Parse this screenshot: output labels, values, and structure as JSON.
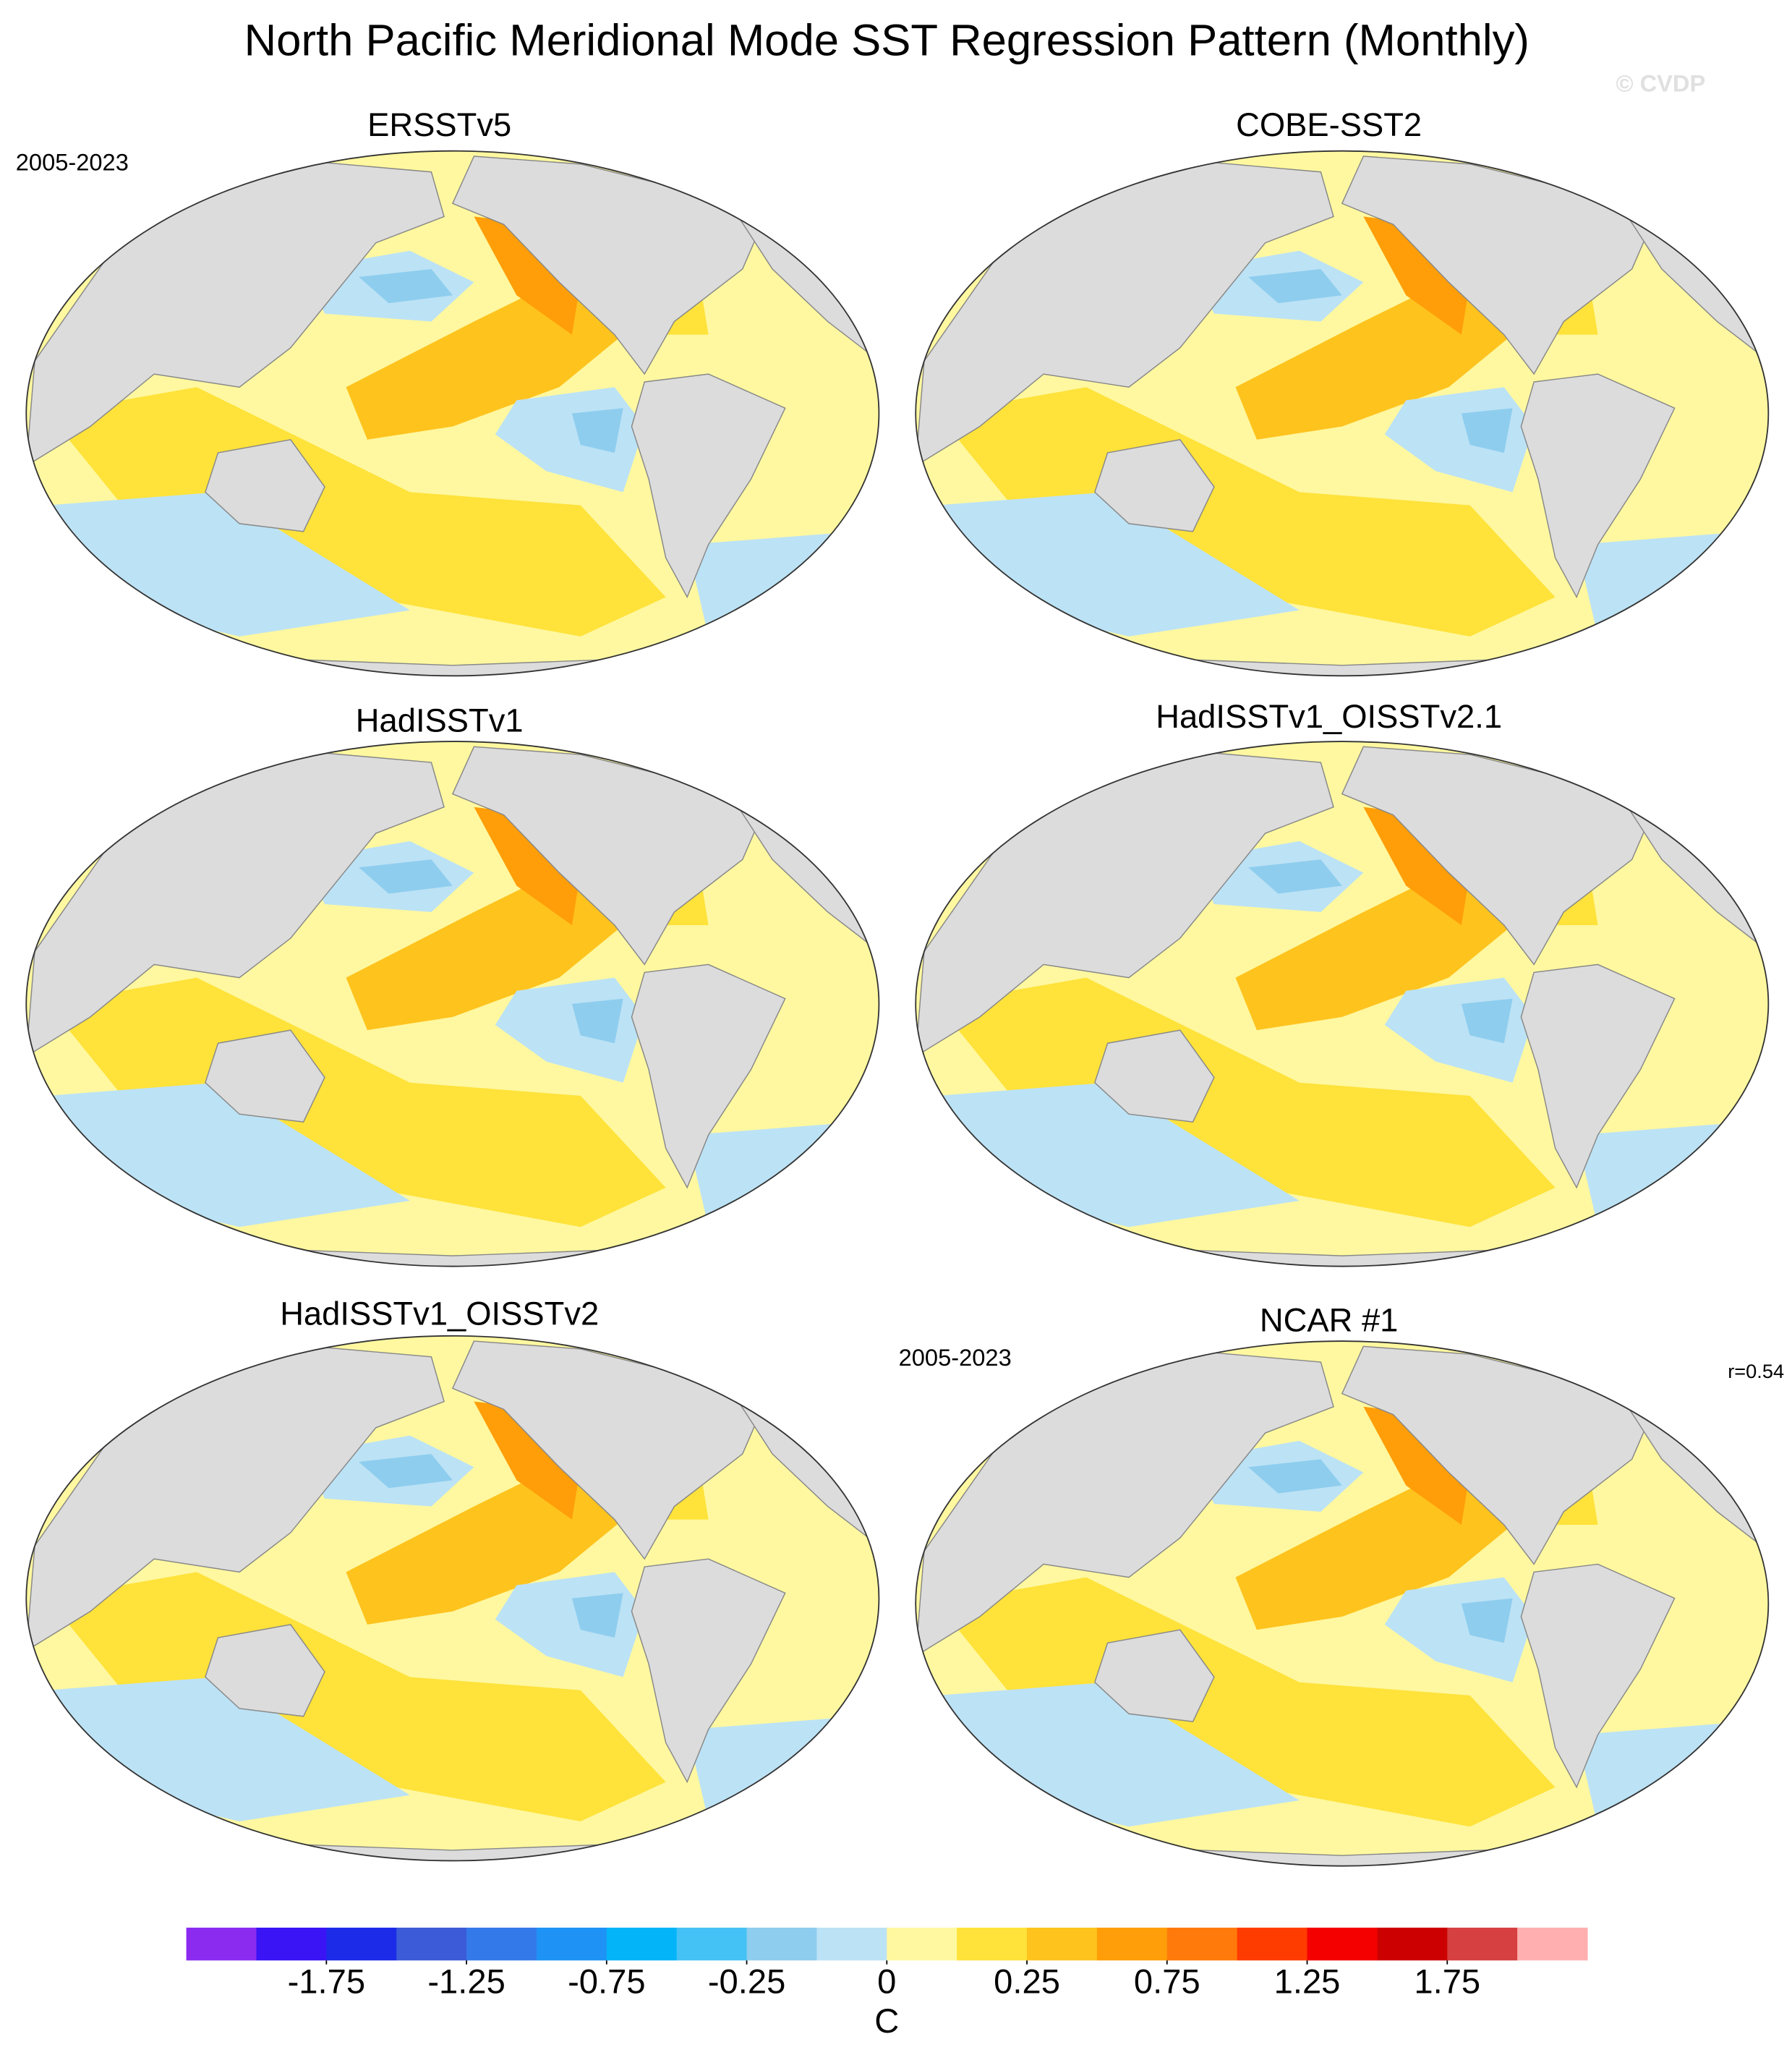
{
  "title": "North Pacific Meridional Mode SST Regression Pattern (Monthly)",
  "watermark": "© CVDP",
  "panels": [
    {
      "title": "ERSSTv5",
      "period": "2005-2023"
    },
    {
      "title": "COBE-SST2"
    },
    {
      "title": "HadISSTv1"
    },
    {
      "title": "HadISSTv1_OISSTv2.1"
    },
    {
      "title": "HadISSTv1_OISSTv2"
    },
    {
      "title": "NCAR #1",
      "period": "2005-2023",
      "r": "r=0.54"
    }
  ],
  "colorbar": {
    "unit": "C",
    "levels": [
      -2,
      -1.75,
      -1.5,
      -1.25,
      -1,
      -0.75,
      -0.5,
      -0.25,
      -0.1,
      0,
      0.1,
      0.25,
      0.5,
      0.75,
      1,
      1.25,
      1.5,
      1.75,
      2
    ],
    "colors": [
      "#8b2bf0",
      "#3a14f5",
      "#1c2be8",
      "#3c5bd8",
      "#3479ea",
      "#1e93f5",
      "#04b4f8",
      "#45c2f5",
      "#8ecdee",
      "#bce2f5",
      "#fff8a0",
      "#ffe23a",
      "#ffc31e",
      "#ff9e08",
      "#ff7a0a",
      "#ff3c00",
      "#f50000",
      "#cc0000",
      "#d64040",
      "#ffafaf"
    ],
    "ticks": [
      -1.75,
      -1.25,
      -0.75,
      -0.25,
      0,
      0.25,
      0.75,
      1.25,
      1.75
    ]
  }
}
